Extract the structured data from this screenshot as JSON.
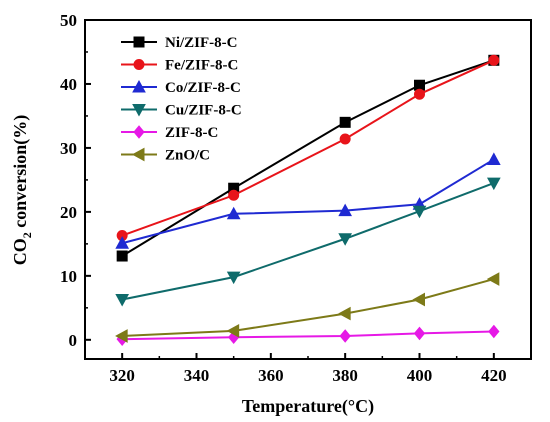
{
  "chart_data": {
    "type": "line",
    "title": "",
    "xlabel": "Temperature(°C)",
    "ylabel_main": "CO",
    "ylabel_sub": "2",
    "ylabel_rest": " conversion(%)",
    "x": [
      320,
      350,
      380,
      400,
      420
    ],
    "xlim": [
      310,
      430
    ],
    "ylim": [
      -3,
      50
    ],
    "xticks": [
      320,
      340,
      360,
      380,
      400,
      420
    ],
    "yticks": [
      0,
      10,
      20,
      30,
      40,
      50
    ],
    "grid": false,
    "legend_position": "top-left",
    "series": [
      {
        "name": "Ni/ZIF-8-C",
        "color": "#000000",
        "marker": "square",
        "values": [
          13.1,
          23.7,
          34.0,
          39.8,
          43.7
        ]
      },
      {
        "name": "Fe/ZIF-8-C",
        "color": "#e8141a",
        "marker": "circle",
        "values": [
          16.3,
          22.6,
          31.4,
          38.4,
          43.7
        ]
      },
      {
        "name": "Co/ZIF-8-C",
        "color": "#1f2ad2",
        "marker": "triangle-up",
        "values": [
          15.1,
          19.7,
          20.2,
          21.2,
          28.2
        ]
      },
      {
        "name": "Cu/ZIF-8-C",
        "color": "#0f6b6b",
        "marker": "triangle-down",
        "values": [
          6.3,
          9.8,
          15.8,
          20.1,
          24.5
        ]
      },
      {
        "name": "ZIF-8-C",
        "color": "#e619e6",
        "marker": "diamond",
        "values": [
          0.1,
          0.4,
          0.6,
          1.0,
          1.3
        ]
      },
      {
        "name": "ZnO/C",
        "color": "#7d7a18",
        "marker": "triangle-left",
        "values": [
          0.6,
          1.4,
          4.1,
          6.3,
          9.5
        ]
      }
    ]
  }
}
